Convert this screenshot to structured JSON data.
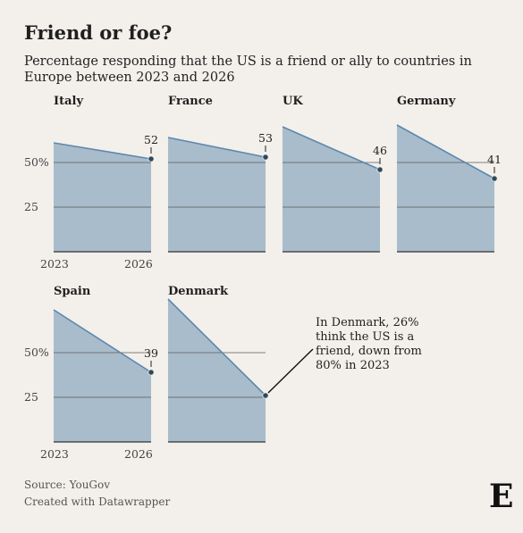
{
  "header": {
    "title": "Friend or foe?",
    "subtitle": "Percentage responding that the US is a friend or ally to countries in Europe between 2023 and 2026"
  },
  "footer": {
    "source": "Source: YouGov",
    "credit": "Created with Datawrapper",
    "logo": "E"
  },
  "annotation": "In Denmark, 26% think the US is a friend, down from 80% in 2023",
  "colors": {
    "area": "#a9bccb",
    "line": "#5c88ad",
    "grid": "#5a5a5a",
    "marker": "#2f4a5c"
  },
  "chart_data": {
    "type": "area",
    "x": [
      "2023",
      "2026"
    ],
    "ylim": [
      0,
      80
    ],
    "yticks": [
      25,
      50
    ],
    "ytick_labels": [
      "25",
      "50%"
    ],
    "x_tick_labels": [
      "2023",
      "2026"
    ],
    "series": [
      {
        "name": "Italy",
        "values": [
          61,
          52
        ],
        "end_label": "52"
      },
      {
        "name": "France",
        "values": [
          64,
          53
        ],
        "end_label": "53"
      },
      {
        "name": "UK",
        "values": [
          70,
          46
        ],
        "end_label": "46"
      },
      {
        "name": "Germany",
        "values": [
          71,
          41
        ],
        "end_label": "41"
      },
      {
        "name": "Spain",
        "values": [
          74,
          39
        ],
        "end_label": "39"
      },
      {
        "name": "Denmark",
        "values": [
          80,
          26
        ],
        "end_label": ""
      }
    ]
  }
}
